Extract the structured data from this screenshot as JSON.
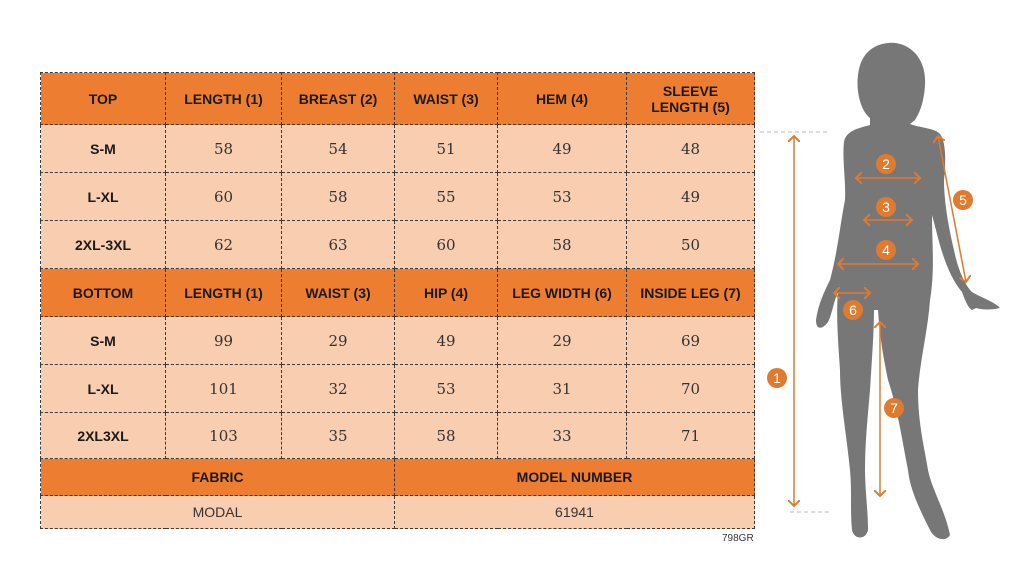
{
  "colors": {
    "header": "#ED7D31",
    "cell": "#F8CDB0",
    "silhouette": "#777777",
    "marker": "#E07A2E"
  },
  "top": {
    "headers": [
      "TOP",
      "LENGTH (1)",
      "BREAST (2)",
      "WAIST (3)",
      "HEM (4)",
      "SLEEVE LENGTH (5)"
    ],
    "rows": [
      [
        "S-M",
        "58",
        "54",
        "51",
        "49",
        "48"
      ],
      [
        "L-XL",
        "60",
        "58",
        "55",
        "53",
        "49"
      ],
      [
        "2XL-3XL",
        "62",
        "63",
        "60",
        "58",
        "50"
      ]
    ]
  },
  "bottom": {
    "headers": [
      "BOTTOM",
      "LENGTH (1)",
      "WAIST (3)",
      "HIP (4)",
      "LEG WIDTH (6)",
      "INSIDE LEG (7)"
    ],
    "rows": [
      [
        "S-M",
        "99",
        "29",
        "49",
        "29",
        "69"
      ],
      [
        "L-XL",
        "101",
        "32",
        "53",
        "31",
        "70"
      ],
      [
        "2XL3XL",
        "103",
        "35",
        "58",
        "33",
        "71"
      ]
    ]
  },
  "info": {
    "fabric_label": "FABRIC",
    "fabric_value": "MODAL",
    "model_label": "MODEL NUMBER",
    "model_value": "61941"
  },
  "code": "798GR",
  "figure": {
    "markers": [
      "1",
      "2",
      "3",
      "4",
      "5",
      "6",
      "7"
    ]
  }
}
